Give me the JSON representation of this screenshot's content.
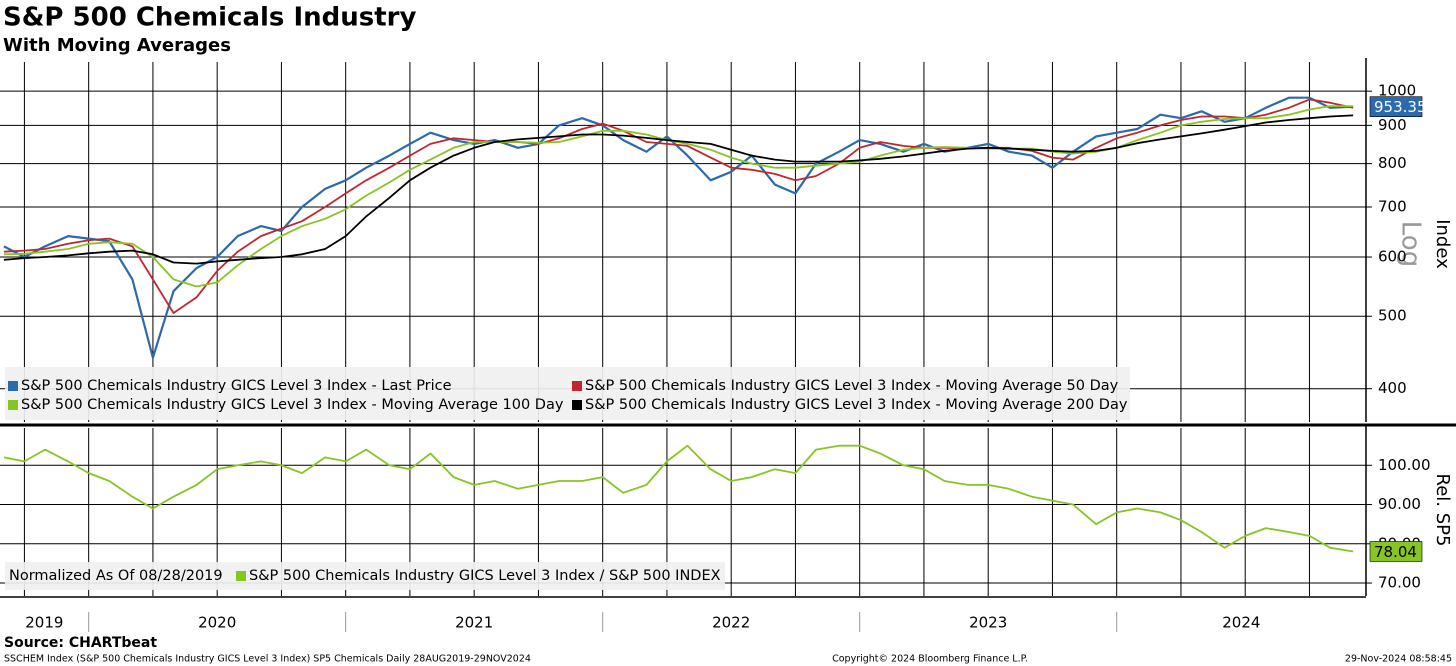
{
  "chart_data": [
    {
      "type": "line",
      "title": "S&P 500 Chemicals Industry",
      "subtitle": "With Moving Averages",
      "log": true,
      "grid": true,
      "y_label": "Index",
      "scale_label": "Log",
      "ylim": [
        361,
        1094
      ],
      "yticks": [
        400,
        500,
        600,
        700,
        800,
        900,
        1000
      ],
      "xlim": [
        2019.655,
        2024.97
      ],
      "xticks": [
        2019.75,
        2020,
        2020.25,
        2020.5,
        2020.75,
        2021,
        2021.25,
        2021.5,
        2021.75,
        2022,
        2022.25,
        2022.5,
        2022.75,
        2023,
        2023.25,
        2023.5,
        2023.75,
        2024,
        2024.25,
        2024.5,
        2024.75
      ],
      "x": [
        2019.67,
        2019.75,
        2019.83,
        2019.92,
        2020.0,
        2020.08,
        2020.17,
        2020.25,
        2020.33,
        2020.42,
        2020.5,
        2020.58,
        2020.67,
        2020.75,
        2020.83,
        2020.92,
        2021.0,
        2021.08,
        2021.17,
        2021.25,
        2021.33,
        2021.42,
        2021.5,
        2021.58,
        2021.67,
        2021.75,
        2021.83,
        2021.92,
        2022.0,
        2022.08,
        2022.17,
        2022.25,
        2022.33,
        2022.42,
        2022.5,
        2022.58,
        2022.67,
        2022.75,
        2022.83,
        2022.92,
        2023.0,
        2023.08,
        2023.17,
        2023.25,
        2023.33,
        2023.42,
        2023.5,
        2023.58,
        2023.67,
        2023.75,
        2023.83,
        2023.92,
        2024.0,
        2024.08,
        2024.17,
        2024.25,
        2024.33,
        2024.42,
        2024.5,
        2024.58,
        2024.67,
        2024.75,
        2024.83,
        2024.92
      ],
      "series": [
        {
          "name": "S&P 500 Chemicals Industry GICS Level 3 Index - Last Price",
          "color": "#2a6aad",
          "values": [
            620,
            600,
            620,
            640,
            635,
            630,
            560,
            440,
            540,
            580,
            600,
            640,
            660,
            650,
            700,
            740,
            760,
            790,
            820,
            850,
            880,
            860,
            850,
            860,
            840,
            850,
            900,
            920,
            900,
            860,
            830,
            870,
            820,
            760,
            780,
            820,
            750,
            730,
            800,
            830,
            860,
            850,
            830,
            850,
            830,
            840,
            850,
            830,
            820,
            790,
            830,
            870,
            880,
            890,
            930,
            920,
            940,
            910,
            920,
            950,
            980,
            980,
            950,
            953.35
          ]
        },
        {
          "name": "S&P 500 Chemicals Industry GICS Level 3 Index - Moving Average 50 Day",
          "color": "#c0272d",
          "values": [
            610,
            612,
            615,
            625,
            632,
            635,
            620,
            560,
            505,
            530,
            575,
            610,
            640,
            655,
            670,
            700,
            730,
            760,
            790,
            820,
            850,
            865,
            860,
            855,
            855,
            850,
            865,
            890,
            905,
            885,
            855,
            850,
            845,
            815,
            790,
            785,
            775,
            760,
            770,
            800,
            840,
            855,
            845,
            840,
            840,
            838,
            840,
            840,
            832,
            815,
            810,
            840,
            865,
            880,
            900,
            915,
            925,
            925,
            920,
            930,
            950,
            975,
            965,
            950
          ]
        },
        {
          "name": "S&P 500 Chemicals Industry GICS Level 3 Index - Moving Average 100 Day",
          "color": "#86c524",
          "values": [
            605,
            606,
            610,
            615,
            625,
            628,
            625,
            600,
            560,
            548,
            555,
            585,
            615,
            640,
            660,
            675,
            695,
            725,
            755,
            785,
            810,
            840,
            855,
            855,
            855,
            853,
            855,
            870,
            885,
            885,
            875,
            860,
            850,
            835,
            815,
            800,
            790,
            790,
            795,
            800,
            805,
            820,
            835,
            840,
            842,
            840,
            838,
            838,
            838,
            830,
            825,
            830,
            840,
            860,
            880,
            900,
            910,
            918,
            920,
            920,
            930,
            945,
            955,
            955
          ]
        },
        {
          "name": "S&P 500 Chemicals Industry GICS Level 3 Index - Moving Average 200 Day",
          "color": "#000000",
          "values": [
            595,
            598,
            600,
            603,
            607,
            610,
            612,
            605,
            590,
            588,
            592,
            595,
            598,
            600,
            605,
            615,
            640,
            680,
            720,
            760,
            790,
            820,
            840,
            855,
            862,
            866,
            870,
            875,
            875,
            872,
            866,
            860,
            855,
            850,
            835,
            820,
            810,
            805,
            805,
            805,
            808,
            812,
            818,
            825,
            832,
            838,
            840,
            838,
            835,
            832,
            830,
            832,
            840,
            852,
            862,
            870,
            878,
            888,
            898,
            908,
            915,
            920,
            925,
            928
          ]
        }
      ],
      "last_value_label": "953.35"
    },
    {
      "type": "line",
      "grid": true,
      "y_label": "Rel. SP5",
      "note": "Normalized As Of 08/28/2019",
      "ylim": [
        66.7,
        109.5
      ],
      "yticks": [
        {
          "value": 70,
          "label": "70.00"
        },
        {
          "value": 80,
          "label": "80.00"
        },
        {
          "value": 90,
          "label": "90.00"
        },
        {
          "value": 100,
          "label": "100.00"
        }
      ],
      "xlim": [
        2019.655,
        2024.97
      ],
      "xticks": [
        2019.75,
        2020,
        2020.25,
        2020.5,
        2020.75,
        2021,
        2021.25,
        2021.5,
        2021.75,
        2022,
        2022.25,
        2022.5,
        2022.75,
        2023,
        2023.25,
        2023.5,
        2023.75,
        2024,
        2024.25,
        2024.5,
        2024.75
      ],
      "x": [
        2019.67,
        2019.75,
        2019.83,
        2019.92,
        2020.0,
        2020.08,
        2020.17,
        2020.25,
        2020.33,
        2020.42,
        2020.5,
        2020.58,
        2020.67,
        2020.75,
        2020.83,
        2020.92,
        2021.0,
        2021.08,
        2021.17,
        2021.25,
        2021.33,
        2021.42,
        2021.5,
        2021.58,
        2021.67,
        2021.75,
        2021.83,
        2021.92,
        2022.0,
        2022.08,
        2022.17,
        2022.25,
        2022.33,
        2022.42,
        2022.5,
        2022.58,
        2022.67,
        2022.75,
        2022.83,
        2022.92,
        2023.0,
        2023.08,
        2023.17,
        2023.25,
        2023.33,
        2023.42,
        2023.5,
        2023.58,
        2023.67,
        2023.75,
        2023.83,
        2023.92,
        2024.0,
        2024.08,
        2024.17,
        2024.25,
        2024.33,
        2024.42,
        2024.5,
        2024.58,
        2024.67,
        2024.75,
        2024.83,
        2024.92
      ],
      "series": [
        {
          "name": "S&P 500 Chemicals Industry GICS Level 3 Index / S&P 500 INDEX",
          "color": "#86c524",
          "values": [
            102,
            101,
            104,
            101,
            98,
            96,
            92,
            89,
            92,
            95,
            99,
            100,
            101,
            100,
            98,
            102,
            101,
            104,
            100,
            99,
            103,
            97,
            95,
            96,
            94,
            95,
            96,
            96,
            97,
            93,
            95,
            101,
            105,
            99,
            96,
            97,
            99,
            98,
            104,
            105,
            105,
            103,
            100,
            99,
            96,
            95,
            95,
            94,
            92,
            91,
            90,
            85,
            88,
            89,
            88,
            86,
            83,
            79,
            82,
            84,
            83,
            82,
            79,
            78.04
          ]
        }
      ],
      "last_value_label": "78.04",
      "year_labels": [
        "2019",
        "2020",
        "2021",
        "2022",
        "2023",
        "2024"
      ]
    }
  ],
  "footer": {
    "source": "Source: CHARTbeat",
    "description": "SSCHEM Index (S&P 500 Chemicals Industry GICS Level 3 Index) SP5 Chemicals  Daily 28AUG2019-29NOV2024",
    "copyright": "Copyright© 2024 Bloomberg Finance L.P.",
    "timestamp": "29-Nov-2024 08:58:45"
  }
}
